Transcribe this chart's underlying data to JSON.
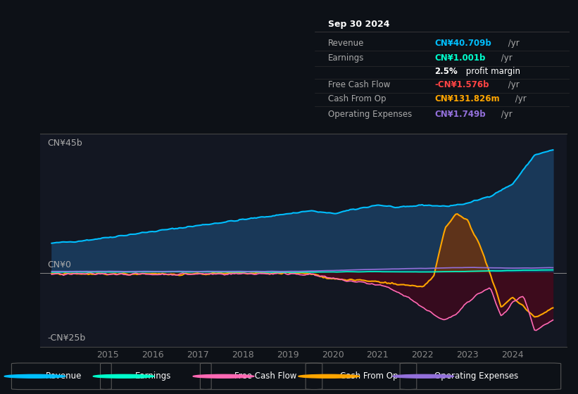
{
  "bg_color": "#0d1117",
  "chart_bg": "#131722",
  "ylabel_top": "CN¥45b",
  "ylabel_bottom": "-CN¥25b",
  "ylabel_mid": "CN¥0",
  "ylim": [
    -25,
    47
  ],
  "xlim": [
    2013.5,
    2025.2
  ],
  "xticks": [
    2015,
    2016,
    2017,
    2018,
    2019,
    2020,
    2021,
    2022,
    2023,
    2024
  ],
  "legend_items": [
    {
      "label": "Revenue",
      "color": "#00bfff"
    },
    {
      "label": "Earnings",
      "color": "#00ffcc"
    },
    {
      "label": "Free Cash Flow",
      "color": "#ff69b4"
    },
    {
      "label": "Cash From Op",
      "color": "#ffa500"
    },
    {
      "label": "Operating Expenses",
      "color": "#9370db"
    }
  ],
  "info_box": {
    "title": "Sep 30 2024",
    "rows": [
      {
        "label": "Revenue",
        "value": "CN¥40.709b",
        "suffix": " /yr",
        "value_color": "#00bfff"
      },
      {
        "label": "Earnings",
        "value": "CN¥1.001b",
        "suffix": " /yr",
        "value_color": "#00ffcc"
      },
      {
        "label": "",
        "value": "2.5%",
        "suffix": " profit margin",
        "value_color": "#ffffff"
      },
      {
        "label": "Free Cash Flow",
        "value": "-CN¥1.576b",
        "suffix": " /yr",
        "value_color": "#ff4444"
      },
      {
        "label": "Cash From Op",
        "value": "CN¥131.826m",
        "suffix": " /yr",
        "value_color": "#ffa500"
      },
      {
        "label": "Operating Expenses",
        "value": "CN¥1.749b",
        "suffix": " /yr",
        "value_color": "#9370db"
      }
    ]
  }
}
